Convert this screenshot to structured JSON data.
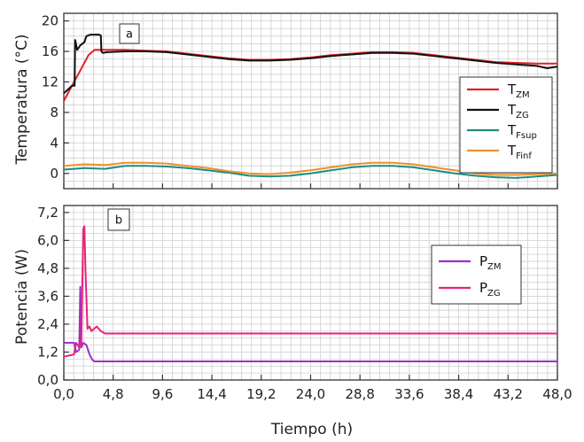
{
  "chart_data": [
    {
      "type": "line",
      "panel_label": "a",
      "ylabel": "Temperatura (°C)",
      "xlim": [
        0,
        48
      ],
      "ylim": [
        -2,
        21
      ],
      "yticks": [
        0,
        4,
        8,
        12,
        16,
        20
      ],
      "ytick_labels": [
        "0",
        "4",
        "8",
        "12",
        "16",
        "20"
      ],
      "grid": true,
      "legend_position": "right",
      "series": [
        {
          "name": "T",
          "sub": "ZM",
          "color": "#e0202a",
          "x": [
            0,
            0.4,
            1,
            1.8,
            2.4,
            3,
            4,
            6,
            8,
            10,
            12,
            14,
            16,
            18,
            20,
            22,
            24,
            26,
            28,
            30,
            32,
            34,
            36,
            38,
            40,
            42,
            44,
            46,
            48
          ],
          "y": [
            9.5,
            10.5,
            12,
            14,
            15.5,
            16.2,
            16.2,
            16.2,
            16.1,
            16,
            15.7,
            15.4,
            15.1,
            14.9,
            14.9,
            15,
            15.2,
            15.5,
            15.7,
            15.9,
            15.9,
            15.8,
            15.5,
            15.2,
            14.9,
            14.6,
            14.5,
            14.4,
            14.4
          ]
        },
        {
          "name": "T",
          "sub": "ZG",
          "color": "#111111",
          "x": [
            0,
            0.4,
            0.8,
            1.05,
            1.1,
            1.3,
            1.6,
            2.0,
            2.2,
            2.6,
            3.4,
            3.6,
            3.65,
            3.8,
            4.2,
            6,
            8,
            10,
            12,
            14,
            16,
            18,
            20,
            22,
            24,
            26,
            28,
            30,
            32,
            34,
            36,
            38,
            40,
            42,
            44,
            46,
            47,
            48
          ],
          "y": [
            10.5,
            11,
            11.5,
            11.5,
            17.5,
            16.2,
            16.8,
            17.2,
            18,
            18.2,
            18.2,
            18.1,
            16,
            15.8,
            15.9,
            16,
            16,
            15.9,
            15.6,
            15.3,
            15,
            14.8,
            14.8,
            14.9,
            15.1,
            15.4,
            15.6,
            15.8,
            15.8,
            15.7,
            15.4,
            15.1,
            14.8,
            14.5,
            14.3,
            14.1,
            13.8,
            14.0
          ]
        },
        {
          "name": "T",
          "sub": "Fsup",
          "color": "#1f8c82",
          "x": [
            0,
            2,
            4,
            6,
            8,
            10,
            12,
            14,
            16,
            18,
            20,
            22,
            24,
            26,
            28,
            30,
            32,
            34,
            36,
            38,
            40,
            42,
            44,
            46,
            48
          ],
          "y": [
            0.5,
            0.7,
            0.6,
            1.0,
            1.0,
            0.9,
            0.7,
            0.4,
            0.1,
            -0.3,
            -0.4,
            -0.3,
            0.0,
            0.4,
            0.8,
            1.0,
            1.0,
            0.8,
            0.4,
            0.0,
            -0.3,
            -0.5,
            -0.6,
            -0.4,
            -0.2
          ]
        },
        {
          "name": "T",
          "sub": "Finf",
          "color": "#f0902a",
          "x": [
            0,
            2,
            4,
            6,
            8,
            10,
            12,
            14,
            16,
            18,
            20,
            22,
            24,
            26,
            28,
            30,
            32,
            34,
            36,
            38,
            40,
            42,
            44,
            46,
            48
          ],
          "y": [
            1.0,
            1.2,
            1.1,
            1.4,
            1.4,
            1.3,
            1.0,
            0.7,
            0.3,
            0.0,
            -0.1,
            0.1,
            0.4,
            0.8,
            1.2,
            1.4,
            1.4,
            1.2,
            0.8,
            0.4,
            0.0,
            -0.2,
            -0.2,
            -0.1,
            0.0
          ]
        }
      ]
    },
    {
      "type": "line",
      "panel_label": "b",
      "ylabel": "Potencia (W)",
      "xlabel": "Tiempo (h)",
      "xlim": [
        0,
        48
      ],
      "ylim": [
        0,
        7.5
      ],
      "xticks": [
        0,
        4.8,
        9.6,
        14.4,
        19.2,
        24.0,
        28.8,
        33.6,
        38.4,
        43.2,
        48.0
      ],
      "xtick_labels": [
        "0,0",
        "4,8",
        "9,6",
        "14,4",
        "19,2",
        "24,0",
        "28,8",
        "33,6",
        "38,4",
        "43,2",
        "48,0"
      ],
      "yticks": [
        0,
        1.2,
        2.4,
        3.6,
        4.8,
        6.0,
        7.2
      ],
      "ytick_labels": [
        "0,0",
        "1,2",
        "2,4",
        "3,6",
        "4,8",
        "6,0",
        "7,2"
      ],
      "grid": true,
      "legend_position": "right",
      "series": [
        {
          "name": "P",
          "sub": "ZM",
          "color": "#9b30c8",
          "x": [
            0,
            1.0,
            1.2,
            1.5,
            1.6,
            1.7,
            1.9,
            2.2,
            2.5,
            2.8,
            3.0,
            48
          ],
          "y": [
            1.6,
            1.6,
            1.2,
            1.3,
            4.0,
            1.4,
            1.6,
            1.5,
            1.1,
            0.85,
            0.8,
            0.8
          ]
        },
        {
          "name": "P",
          "sub": "ZG",
          "color": "#e8237a",
          "x": [
            0,
            1.0,
            1.2,
            1.5,
            1.7,
            1.9,
            2.0,
            2.1,
            2.3,
            2.5,
            2.7,
            3.2,
            3.6,
            4.0,
            48
          ],
          "y": [
            1.0,
            1.1,
            1.6,
            1.4,
            1.5,
            6.5,
            6.6,
            4.8,
            2.2,
            2.3,
            2.1,
            2.3,
            2.1,
            2.0,
            2.0
          ]
        }
      ]
    }
  ]
}
